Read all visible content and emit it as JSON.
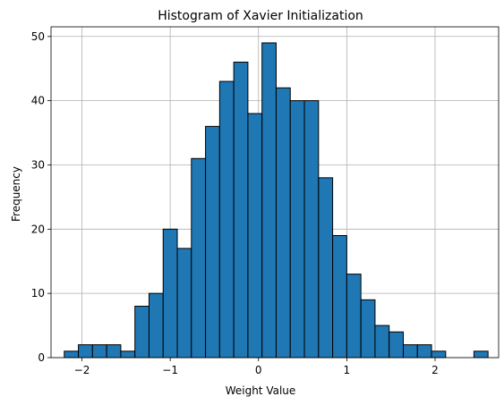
{
  "chart_data": {
    "type": "bar",
    "title": "Histogram of Xavier Initialization",
    "xlabel": "Weight Value",
    "ylabel": "Frequency",
    "bar_color": "#1f77b4",
    "edge_color": "#000000",
    "grid": true,
    "xlim": [
      -2.35,
      2.72
    ],
    "ylim": [
      0,
      51.5
    ],
    "xticks": [
      -2,
      -1,
      0,
      1,
      2
    ],
    "xtick_labels": [
      "−2",
      "−1",
      "0",
      "1",
      "2"
    ],
    "yticks": [
      0,
      10,
      20,
      30,
      40,
      50
    ],
    "ytick_labels": [
      "0",
      "10",
      "20",
      "30",
      "40",
      "50"
    ],
    "bin_edges": [
      -2.2,
      -2.04,
      -1.88,
      -1.72,
      -1.56,
      -1.4,
      -1.24,
      -1.08,
      -0.92,
      -0.76,
      -0.6,
      -0.44,
      -0.28,
      -0.12,
      0.04,
      0.2,
      0.36,
      0.52,
      0.68,
      0.84,
      1.0,
      1.16,
      1.32,
      1.48,
      1.64,
      1.8,
      1.96,
      2.12,
      2.28,
      2.44,
      2.6
    ],
    "values": [
      1,
      2,
      2,
      2,
      1,
      8,
      10,
      20,
      17,
      31,
      36,
      43,
      46,
      38,
      49,
      42,
      40,
      40,
      28,
      19,
      13,
      9,
      5,
      4,
      2,
      2,
      1,
      0,
      0,
      1
    ]
  }
}
